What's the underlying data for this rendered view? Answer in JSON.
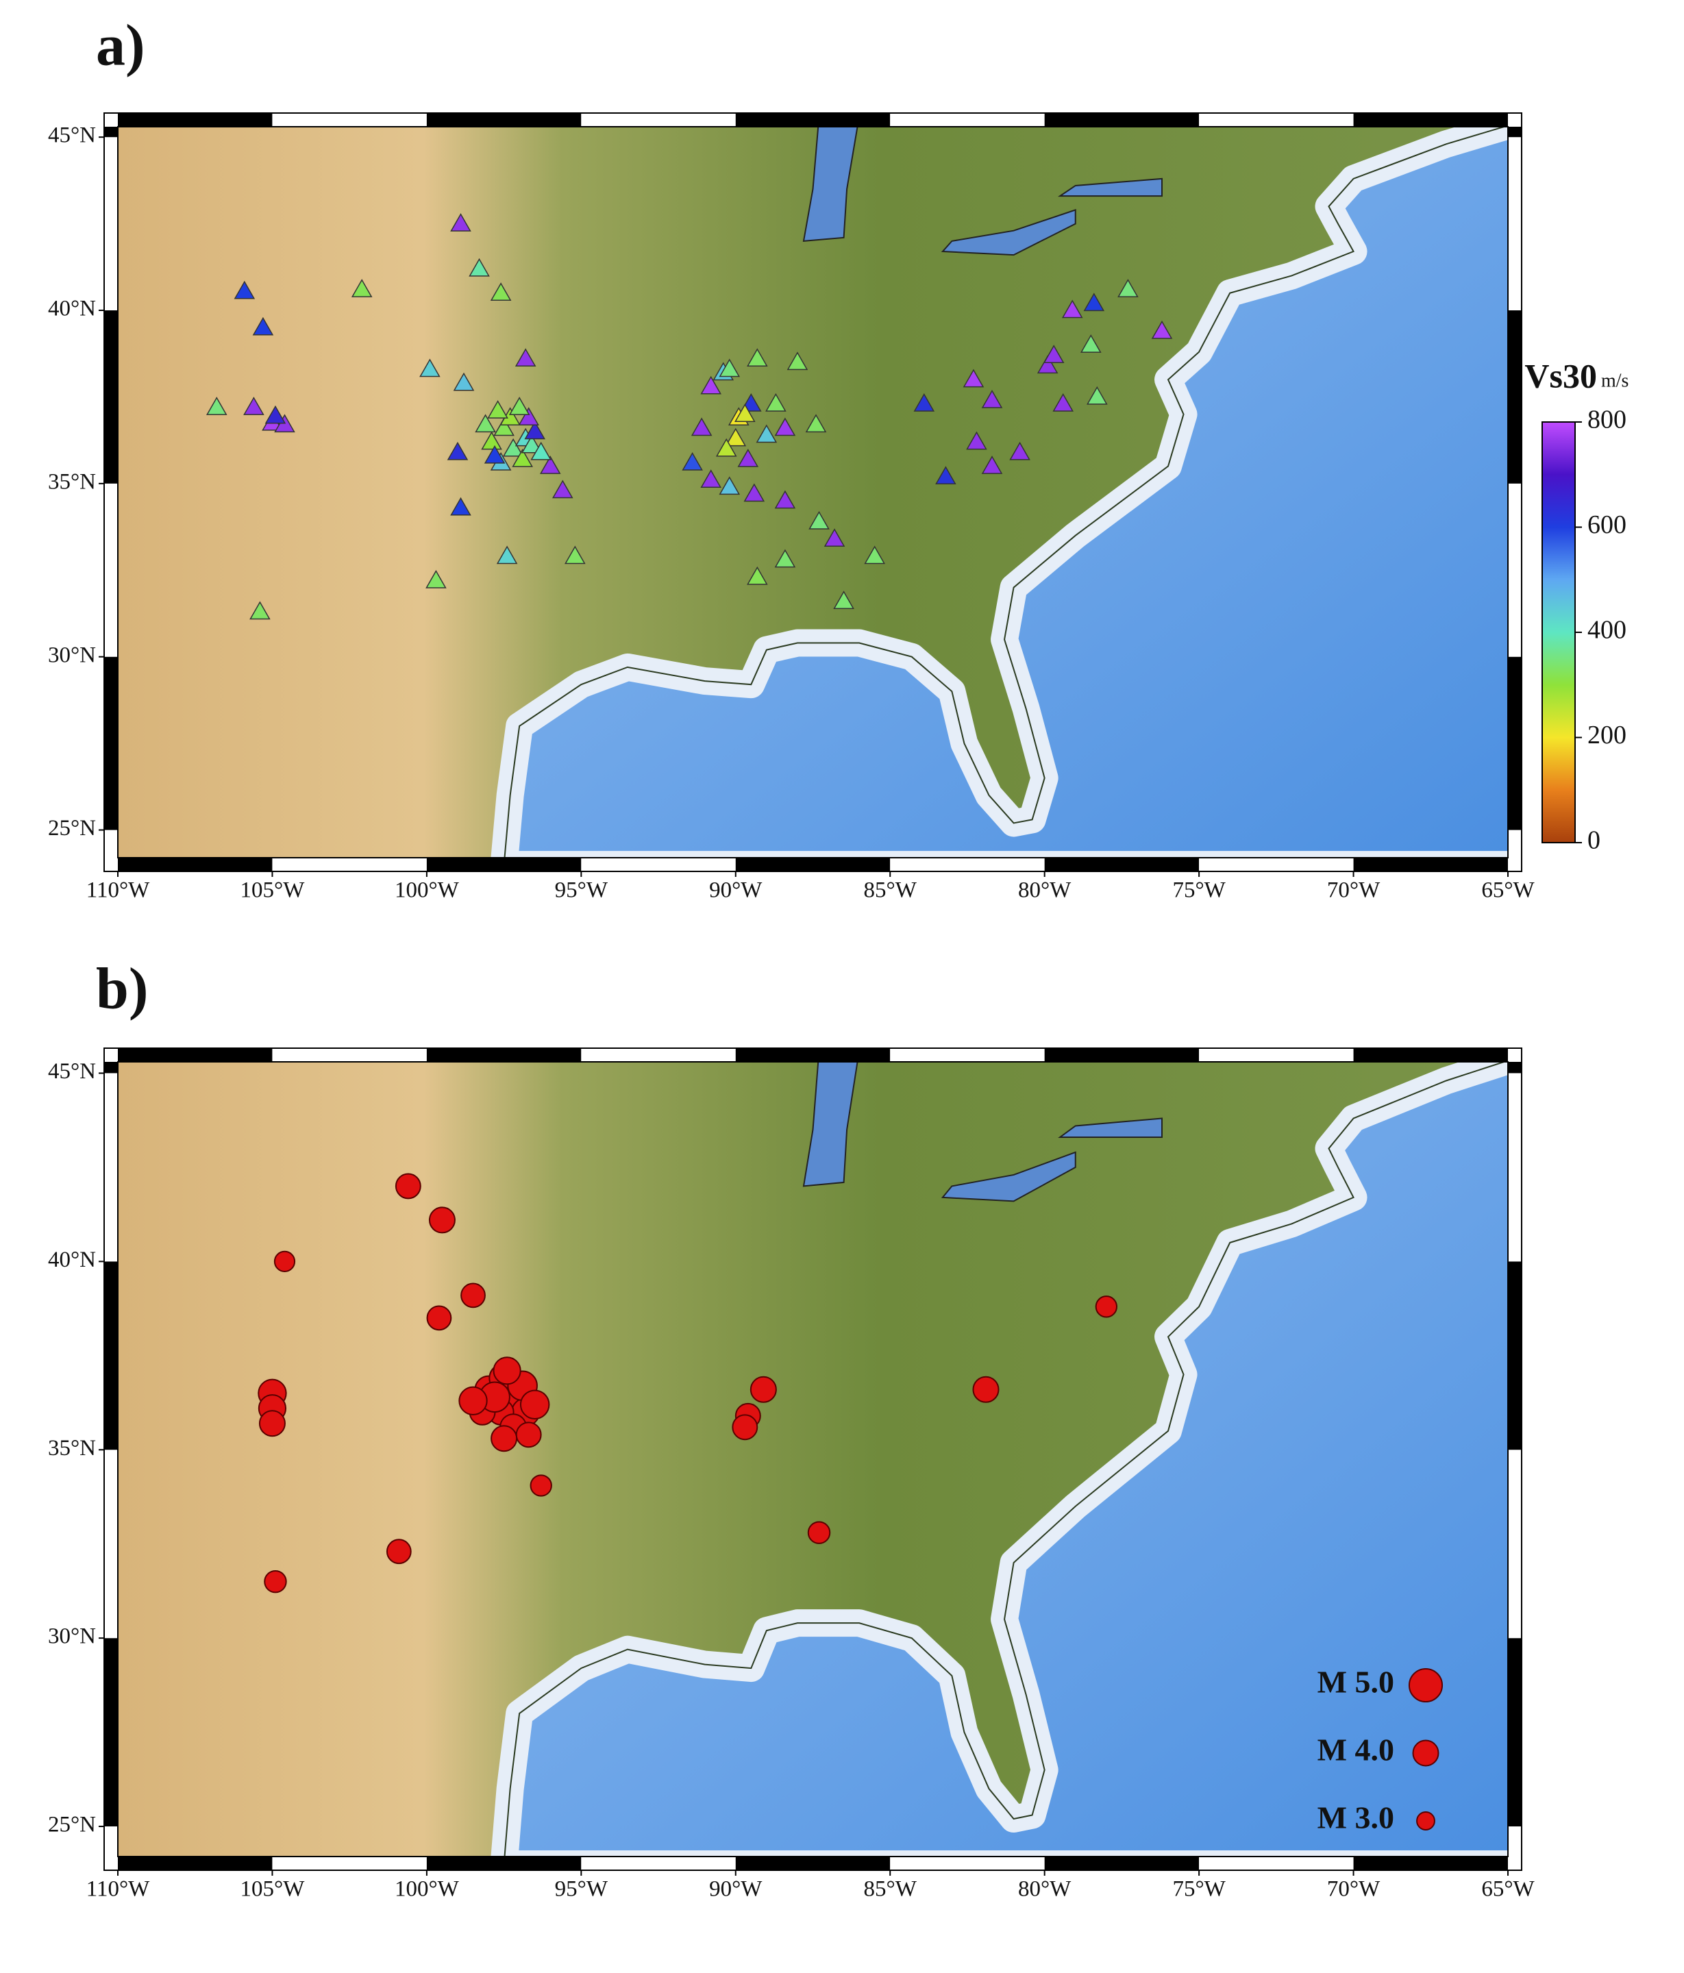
{
  "chart_data": [
    {
      "type": "scatter",
      "title": "a)",
      "marker": "triangle",
      "xlim": [
        -110,
        -65
      ],
      "ylim": [
        24.2,
        45.3
      ],
      "xticks": [
        {
          "value": -110,
          "label": "110°W"
        },
        {
          "value": -105,
          "label": "105°W"
        },
        {
          "value": -100,
          "label": "100°W"
        },
        {
          "value": -95,
          "label": "95°W"
        },
        {
          "value": -90,
          "label": "90°W"
        },
        {
          "value": -85,
          "label": "85°W"
        },
        {
          "value": -80,
          "label": "80°W"
        },
        {
          "value": -75,
          "label": "75°W"
        },
        {
          "value": -70,
          "label": "70°W"
        },
        {
          "value": -65,
          "label": "65°W"
        }
      ],
      "yticks": [
        {
          "value": 25,
          "label": "25°N"
        },
        {
          "value": 30,
          "label": "30°N"
        },
        {
          "value": 35,
          "label": "35°N"
        },
        {
          "value": 40,
          "label": "40°N"
        },
        {
          "value": 45,
          "label": "45°N"
        }
      ],
      "x": [
        -105.9,
        -105.3,
        -106.8,
        -105.6,
        -105.0,
        -104.6,
        -104.9,
        -105.4,
        -102.1,
        -98.9,
        -98.3,
        -97.6,
        -99.9,
        -98.8,
        -96.8,
        -99.0,
        -97.9,
        -97.5,
        -97.2,
        -96.8,
        -97.6,
        -96.9,
        -97.3,
        -96.6,
        -97.8,
        -96.5,
        -96.7,
        -96.0,
        -98.9,
        -97.4,
        -99.7,
        -95.6,
        -95.2,
        -90.8,
        -90.4,
        -90.2,
        -89.3,
        -89.5,
        -89.9,
        -90.0,
        -91.1,
        -91.4,
        -89.6,
        -89.0,
        -88.4,
        -90.8,
        -90.2,
        -89.4,
        -88.4,
        -87.3,
        -88.4,
        -89.3,
        -86.5,
        -85.5,
        -86.8,
        -88.0,
        -87.4,
        -88.7,
        -83.9,
        -82.3,
        -81.7,
        -82.2,
        -81.7,
        -83.2,
        -80.8,
        -79.4,
        -79.9,
        -79.7,
        -79.1,
        -78.4,
        -77.3,
        -78.5,
        -78.3,
        -76.2,
        -97.0,
        -98.1,
        -97.7,
        -96.3,
        -89.7,
        -90.3
      ],
      "y": [
        40.55,
        39.5,
        37.2,
        37.2,
        36.75,
        36.7,
        36.95,
        31.3,
        40.6,
        42.5,
        41.2,
        40.5,
        38.3,
        37.9,
        38.6,
        35.9,
        36.2,
        36.6,
        36.0,
        36.3,
        35.6,
        35.7,
        36.9,
        36.1,
        35.8,
        36.5,
        36.9,
        35.5,
        34.3,
        32.9,
        32.2,
        34.8,
        32.9,
        37.8,
        38.2,
        38.3,
        38.6,
        37.3,
        36.9,
        36.3,
        36.6,
        35.6,
        35.7,
        36.4,
        36.6,
        35.1,
        34.9,
        34.7,
        34.5,
        33.9,
        32.8,
        32.3,
        31.6,
        32.9,
        33.4,
        38.5,
        36.7,
        37.3,
        37.3,
        38.0,
        37.4,
        36.2,
        35.5,
        35.2,
        35.9,
        37.3,
        38.4,
        38.7,
        40.0,
        40.2,
        40.6,
        39.0,
        37.5,
        39.4,
        37.2,
        36.7,
        37.1,
        35.9,
        37.0,
        36.0
      ],
      "values": [
        600,
        600,
        350,
        760,
        780,
        760,
        650,
        330,
        320,
        760,
        380,
        320,
        440,
        460,
        760,
        630,
        300,
        320,
        360,
        420,
        450,
        300,
        290,
        380,
        600,
        650,
        760,
        760,
        600,
        430,
        330,
        760,
        330,
        780,
        450,
        350,
        330,
        620,
        200,
        220,
        760,
        580,
        760,
        450,
        770,
        760,
        460,
        760,
        760,
        350,
        340,
        320,
        340,
        340,
        760,
        330,
        330,
        330,
        620,
        780,
        760,
        760,
        760,
        620,
        760,
        760,
        760,
        760,
        780,
        600,
        350,
        350,
        350,
        780,
        330,
        340,
        310,
        400,
        230,
        260
      ],
      "colorbar": {
        "label": "Vs30",
        "unit": "m/s",
        "lim": [
          0,
          800
        ],
        "ticks": [
          0,
          200,
          400,
          600,
          800
        ],
        "colors": [
          "#a8400c",
          "#e8801c",
          "#f5e62a",
          "#8fe23a",
          "#5ee6c2",
          "#5ea8f2",
          "#1f3ee0",
          "#4a12c8",
          "#c04cff"
        ]
      }
    },
    {
      "type": "scatter",
      "title": "b)",
      "marker": "circle",
      "color": "#e01010",
      "xlim": [
        -110,
        -65
      ],
      "ylim": [
        24.2,
        45.3
      ],
      "xticks": [
        {
          "value": -110,
          "label": "110°W"
        },
        {
          "value": -105,
          "label": "105°W"
        },
        {
          "value": -100,
          "label": "100°W"
        },
        {
          "value": -95,
          "label": "95°W"
        },
        {
          "value": -90,
          "label": "90°W"
        },
        {
          "value": -85,
          "label": "85°W"
        },
        {
          "value": -80,
          "label": "80°W"
        },
        {
          "value": -75,
          "label": "75°W"
        },
        {
          "value": -70,
          "label": "70°W"
        },
        {
          "value": -65,
          "label": "65°W"
        }
      ],
      "yticks": [
        {
          "value": 25,
          "label": "25°N"
        },
        {
          "value": 30,
          "label": "30°N"
        },
        {
          "value": 35,
          "label": "35°N"
        },
        {
          "value": 40,
          "label": "40°N"
        },
        {
          "value": 45,
          "label": "45°N"
        }
      ],
      "x": [
        -100.6,
        -99.5,
        -104.6,
        -98.5,
        -99.6,
        -105.0,
        -105.0,
        -105.0,
        -98.0,
        -97.5,
        -97.3,
        -97.0,
        -96.8,
        -97.6,
        -97.2,
        -98.2,
        -96.9,
        -97.8,
        -96.7,
        -97.5,
        -96.5,
        -97.4,
        -98.5,
        -96.3,
        -100.9,
        -104.9,
        -89.1,
        -89.6,
        -89.7,
        -87.3,
        -81.9,
        -78.0
      ],
      "y": [
        42.0,
        41.1,
        40.0,
        39.1,
        38.5,
        36.5,
        36.1,
        35.7,
        36.6,
        36.9,
        36.3,
        36.4,
        36.0,
        36.0,
        35.6,
        36.0,
        36.7,
        36.4,
        35.4,
        35.3,
        36.2,
        37.1,
        36.3,
        34.05,
        32.3,
        31.5,
        36.6,
        35.9,
        35.6,
        32.8,
        36.6,
        38.8
      ],
      "sizes": [
        3.9,
        4.0,
        3.3,
        3.8,
        3.8,
        4.3,
        4.2,
        4.0,
        4.2,
        4.5,
        4.2,
        4.0,
        4.3,
        4.0,
        4.1,
        4.0,
        4.5,
        4.6,
        3.9,
        4.0,
        4.4,
        4.2,
        4.3,
        3.4,
        3.8,
        3.5,
        4.0,
        3.9,
        3.9,
        3.5,
        4.0,
        3.4
      ],
      "legend": {
        "position": "lower right",
        "entries": [
          {
            "label": "M 5.0",
            "value": 5
          },
          {
            "label": "M 4.0",
            "value": 4
          },
          {
            "label": "M 3.0",
            "value": 3
          }
        ]
      }
    }
  ]
}
